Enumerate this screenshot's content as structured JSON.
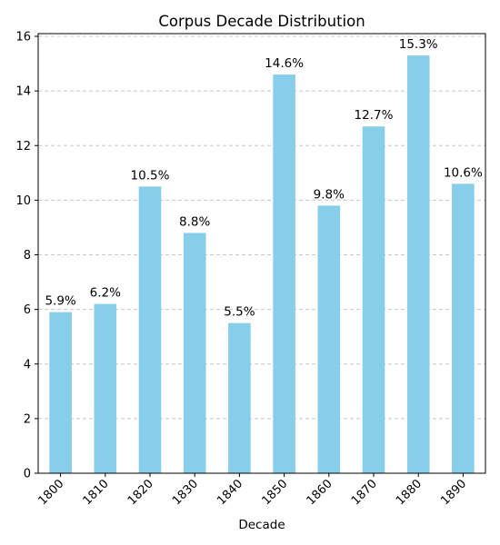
{
  "chart_data": {
    "type": "bar",
    "title": "Corpus Decade Distribution",
    "xlabel": "Decade",
    "ylabel": "",
    "categories": [
      "1800",
      "1810",
      "1820",
      "1830",
      "1840",
      "1850",
      "1860",
      "1870",
      "1880",
      "1890"
    ],
    "values": [
      5.9,
      6.2,
      10.5,
      8.8,
      5.5,
      14.6,
      9.8,
      12.7,
      15.3,
      10.6
    ],
    "data_labels": [
      "5.9%",
      "6.2%",
      "10.5%",
      "8.8%",
      "5.5%",
      "14.6%",
      "9.8%",
      "12.7%",
      "15.3%",
      "10.6%"
    ],
    "ylim": [
      0,
      16.1
    ],
    "yticks": [
      0,
      2,
      4,
      6,
      8,
      10,
      12,
      14,
      16
    ],
    "grid": "y-dashed",
    "bar_color": "#87CEEB",
    "grid_color": "#c8c8c8"
  }
}
